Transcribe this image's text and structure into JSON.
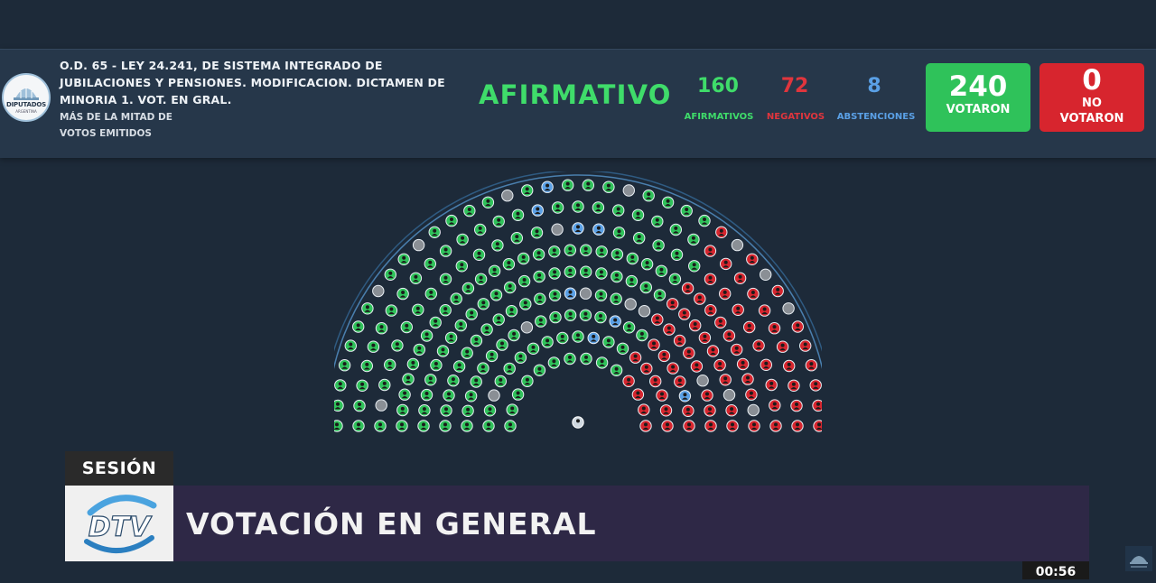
{
  "header": {
    "motion_title": "O.D. 65 - LEY 24.241, DE SISTEMA INTEGRADO DE JUBILACIONES Y PENSIONES. MODIFICACION. DICTAMEN DE MINORIA 1. VOT. EN GRAL.",
    "majority_type": "MÁS DE LA MITAD DE VOTOS EMITIDOS",
    "logo_text": "DIPUTADOS",
    "logo_subtext": "ARGENTINA",
    "result": "AFIRMATIVO"
  },
  "counts": {
    "afirmativos": "160",
    "afirmativos_label": "AFIRMATIVOS",
    "negativos": "72",
    "negativos_label": "NEGATIVOS",
    "abstenciones": "8",
    "abstenciones_label": "ABSTENCIONES",
    "votaron": "240",
    "votaron_label": "VOTARON",
    "no_votaron": "0",
    "no_votaron_label_1": "NO",
    "no_votaron_label_2": "VOTARON"
  },
  "hemicycle": {
    "seats_affirmative": 160,
    "seats_negative": 72,
    "seats_abstention": 8,
    "seats_empty": 17
  },
  "colors": {
    "affirmative": "#2fc25a",
    "negative": "#d7252e",
    "abstention": "#5aa0e6",
    "empty": "#8a8f95",
    "background": "#1d2a39",
    "panel": "#26374a"
  },
  "broadcast": {
    "section_tag": "SESIÓN",
    "title": "VOTACIÓN EN GENERAL",
    "logo": "DTV",
    "clock": "00:56"
  }
}
